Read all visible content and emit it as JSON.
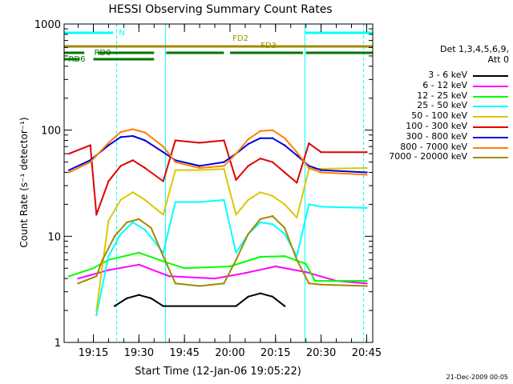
{
  "title": "HESSI Observing Summary Count Rates",
  "xlabel": "Start Time (12-Jan-06 19:05:22)",
  "ylabel": "Count Rate (s⁻¹ detector⁻¹)",
  "footer": "21-Dec-2009 00:05",
  "legend_header": [
    "Det 1,3,4,5,6,9,",
    "Att 0"
  ],
  "flag_labels": {
    "N": "N",
    "FD2": "FD2",
    "FD3": "FD3",
    "RD0": "RD0",
    "RD6": "RD6"
  },
  "colors": {
    "cyan": "#00ffff",
    "olive": "#a08a00",
    "green": "#007700",
    "axis": "#000000"
  },
  "chart_data": {
    "type": "line",
    "title": "HESSI Observing Summary Count Rates",
    "xlabel": "Start Time (12-Jan-06 19:05:22)",
    "ylabel": "Count Rate (s⁻¹ detector⁻¹)",
    "y_scale": "log",
    "ylim": [
      1,
      1000
    ],
    "xlim": [
      "19:05:22",
      "20:47:00"
    ],
    "x_ticks": [
      "19:15",
      "19:30",
      "19:45",
      "20:00",
      "20:15",
      "20:30",
      "20:45"
    ],
    "y_ticks": [
      "1",
      "10",
      "100",
      "1000"
    ],
    "legend_position": "right",
    "series": [
      {
        "name": "3 - 6 keV",
        "color": "#000000",
        "x": [
          "19:22",
          "19:26",
          "19:30",
          "19:34",
          "19:38",
          "20:02",
          "20:06",
          "20:10",
          "20:14",
          "20:18"
        ],
        "values": [
          2.2,
          2.6,
          2.8,
          2.6,
          2.2,
          2.2,
          2.7,
          2.9,
          2.7,
          2.2
        ]
      },
      {
        "name": "6 - 12 keV",
        "color": "#ff00ff",
        "x": [
          "19:10",
          "19:20",
          "19:30",
          "19:40",
          "19:55",
          "20:05",
          "20:15",
          "20:25",
          "20:35",
          "20:45"
        ],
        "values": [
          4.0,
          4.8,
          5.4,
          4.2,
          4.0,
          4.5,
          5.2,
          4.6,
          3.8,
          3.6
        ]
      },
      {
        "name": "12 - 25 keV",
        "color": "#00ff00",
        "x": [
          "19:07",
          "19:15",
          "19:20",
          "19:30",
          "19:38",
          "19:45",
          "20:00",
          "20:10",
          "20:18",
          "20:25",
          "20:28",
          "20:45"
        ],
        "values": [
          4.2,
          5.0,
          6.0,
          7.0,
          5.8,
          5.0,
          5.2,
          6.4,
          6.5,
          5.5,
          3.8,
          3.8
        ]
      },
      {
        "name": "25 - 50 keV",
        "color": "#00ffff",
        "x": [
          "19:16",
          "19:20",
          "19:24",
          "19:28",
          "19:32",
          "19:38",
          "19:42",
          "19:50",
          "19:58",
          "20:02",
          "20:06",
          "20:10",
          "20:14",
          "20:18",
          "20:22",
          "20:26",
          "20:30",
          "20:45"
        ],
        "values": [
          1.8,
          6.5,
          10.5,
          13.5,
          11.5,
          7.0,
          21.0,
          21.0,
          22.0,
          7.0,
          10.5,
          13.5,
          13.0,
          10.5,
          6.5,
          20.0,
          19.0,
          18.5
        ]
      },
      {
        "name": "50 - 100 keV",
        "color": "#dcc800",
        "x": [
          "19:16",
          "19:20",
          "19:24",
          "19:28",
          "19:32",
          "19:38",
          "19:42",
          "19:50",
          "19:58",
          "20:02",
          "20:06",
          "20:10",
          "20:14",
          "20:18",
          "20:22",
          "20:26",
          "20:45"
        ],
        "values": [
          2.0,
          14.0,
          22.0,
          26.0,
          22.0,
          16.0,
          42.0,
          42.0,
          43.0,
          16.0,
          22.0,
          26.0,
          24.0,
          20.0,
          15.0,
          43.0,
          44.0
        ]
      },
      {
        "name": "100 - 300 keV",
        "color": "#e00000",
        "x": [
          "19:07",
          "19:14",
          "19:16",
          "19:20",
          "19:24",
          "19:28",
          "19:32",
          "19:38",
          "19:42",
          "19:50",
          "19:58",
          "20:02",
          "20:06",
          "20:10",
          "20:14",
          "20:18",
          "20:22",
          "20:26",
          "20:30",
          "20:45"
        ],
        "values": [
          60.0,
          72.0,
          16.0,
          33.0,
          46.0,
          52.0,
          44.0,
          33.0,
          80.0,
          76.0,
          80.0,
          34.0,
          46.0,
          54.0,
          50.0,
          40.0,
          32.0,
          75.0,
          62.0,
          62.0
        ]
      },
      {
        "name": "300 - 800 keV",
        "color": "#0000e0",
        "x": [
          "19:07",
          "19:14",
          "19:20",
          "19:24",
          "19:28",
          "19:32",
          "19:38",
          "19:42",
          "19:50",
          "19:58",
          "20:02",
          "20:06",
          "20:10",
          "20:14",
          "20:18",
          "20:22",
          "20:26",
          "20:30",
          "20:45"
        ],
        "values": [
          42.0,
          52.0,
          72.0,
          86.0,
          88.0,
          80.0,
          62.0,
          52.0,
          46.0,
          50.0,
          60.0,
          74.0,
          84.0,
          84.0,
          72.0,
          58.0,
          46.0,
          42.0,
          40.0
        ]
      },
      {
        "name": "800 - 7000 keV",
        "color": "#ff8000",
        "x": [
          "19:07",
          "19:14",
          "19:20",
          "19:24",
          "19:28",
          "19:32",
          "19:38",
          "19:42",
          "19:50",
          "19:58",
          "20:02",
          "20:06",
          "20:10",
          "20:14",
          "20:18",
          "20:22",
          "20:26",
          "20:30",
          "20:45"
        ],
        "values": [
          40.0,
          50.0,
          76.0,
          96.0,
          102.0,
          95.0,
          70.0,
          50.0,
          44.0,
          46.0,
          60.0,
          82.0,
          98.0,
          100.0,
          84.0,
          62.0,
          44.0,
          40.0,
          38.0
        ]
      },
      {
        "name": "7000 - 20000 keV",
        "color": "#a08a00",
        "x": [
          "19:10",
          "19:16",
          "19:18",
          "19:22",
          "19:26",
          "19:30",
          "19:34",
          "19:38",
          "19:42",
          "19:50",
          "19:58",
          "20:02",
          "20:06",
          "20:10",
          "20:14",
          "20:18",
          "20:22",
          "20:26",
          "20:30",
          "20:45"
        ],
        "values": [
          3.6,
          4.2,
          6.0,
          10.0,
          13.5,
          14.5,
          12.0,
          6.5,
          3.6,
          3.4,
          3.6,
          6.0,
          10.5,
          14.5,
          15.5,
          12.0,
          6.0,
          3.6,
          3.5,
          3.4
        ]
      }
    ],
    "annotations": {
      "vertical_lines": [
        {
          "x": "19:22:40",
          "style": "dashed"
        },
        {
          "x": "19:38:45",
          "style": "solid"
        },
        {
          "x": "20:24:40",
          "style": "solid"
        },
        {
          "x": "20:44:00",
          "style": "dashed"
        }
      ],
      "flag_bars": [
        {
          "label": "N",
          "segments": [
            [
              "19:05:22",
              "19:21:30"
            ],
            [
              "20:24:40",
              "20:47:00"
            ]
          ]
        },
        {
          "label": "FD2",
          "segments": [
            [
              "19:05:22",
              "20:47:00"
            ]
          ]
        },
        {
          "label": "RD0",
          "segments": [
            [
              "19:05:22",
              "19:12:00"
            ],
            [
              "19:16:40",
              "19:35:00"
            ],
            [
              "19:39:00",
              "19:58:00"
            ],
            [
              "20:00:00",
              "20:24:00"
            ],
            [
              "20:25:00",
              "20:47:00"
            ]
          ]
        },
        {
          "label": "RD6",
          "segments": [
            [
              "19:05:22",
              "19:10:30"
            ],
            [
              "19:15:00",
              "19:35:00"
            ]
          ]
        }
      ]
    }
  }
}
